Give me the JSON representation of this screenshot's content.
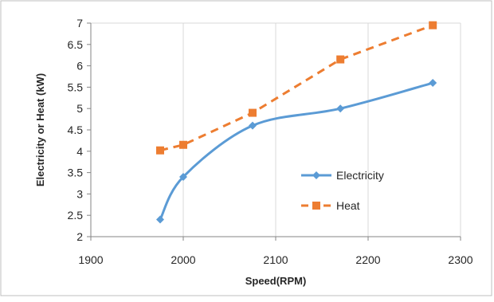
{
  "chart_data": {
    "type": "line",
    "title": "",
    "xlabel": "Speed(RPM)",
    "ylabel": "Electricity or Heat (kW)",
    "xlim": [
      1900,
      2300
    ],
    "ylim": [
      2,
      7
    ],
    "x_ticks": [
      "1900",
      "2000",
      "2100",
      "2200",
      "2300"
    ],
    "y_ticks": [
      "2",
      "2.5",
      "3",
      "3.5",
      "4",
      "4.5",
      "5",
      "5.5",
      "6",
      "6.5",
      "7"
    ],
    "grid": "vertical",
    "legend_position": "bottom-right",
    "series": [
      {
        "name": "Electricity",
        "color": "#5b9bd5",
        "marker": "diamond",
        "line_style": "solid-smooth",
        "x": [
          1975,
          2000,
          2075,
          2170,
          2270
        ],
        "y": [
          2.4,
          3.4,
          4.6,
          5.0,
          5.6
        ]
      },
      {
        "name": "Heat",
        "color": "#ed7d31",
        "marker": "square",
        "line_style": "dashed",
        "x": [
          1975,
          2000,
          2075,
          2170,
          2270
        ],
        "y": [
          4.02,
          4.15,
          4.9,
          6.15,
          6.95
        ]
      }
    ]
  }
}
